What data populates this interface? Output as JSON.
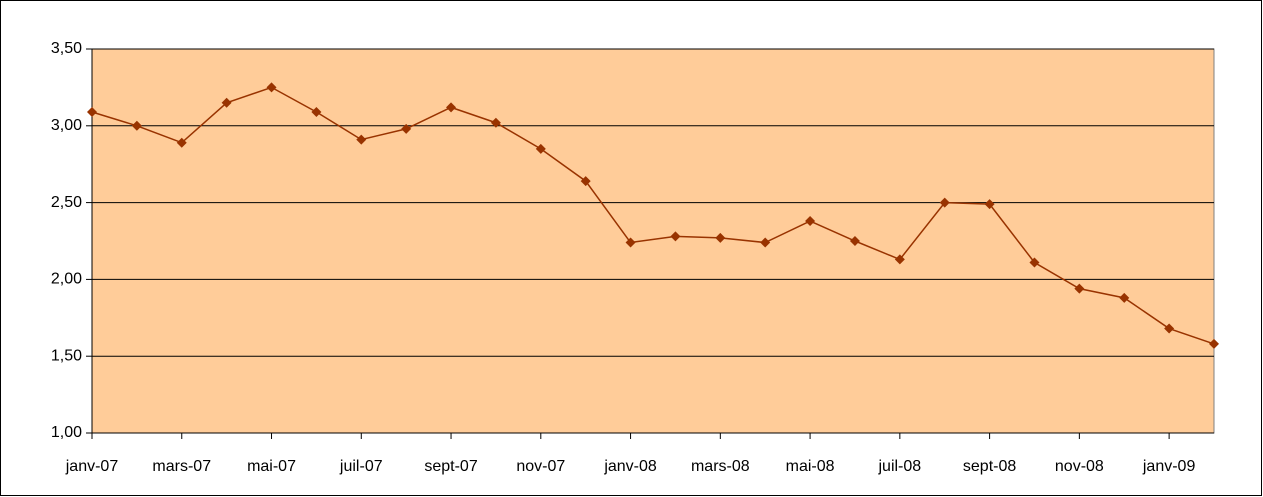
{
  "chart_data": {
    "type": "line",
    "categories": [
      "janv-07",
      null,
      "mars-07",
      null,
      "mai-07",
      null,
      "juil-07",
      null,
      "sept-07",
      null,
      "nov-07",
      null,
      "janv-08",
      null,
      "mars-08",
      null,
      "mai-08",
      null,
      "juil-08",
      null,
      "sept-08",
      null,
      "nov-08",
      null,
      "janv-09",
      null
    ],
    "series": [
      {
        "color": "#993300",
        "values": [
          3.09,
          3.0,
          2.89,
          3.15,
          3.25,
          3.09,
          2.91,
          2.98,
          3.12,
          3.02,
          2.85,
          2.64,
          2.24,
          2.28,
          2.27,
          2.24,
          2.38,
          2.25,
          2.13,
          2.5,
          2.49,
          2.11,
          1.94,
          1.88,
          1.68,
          1.58
        ]
      }
    ],
    "ylim": [
      1.0,
      3.5
    ],
    "yticks": [
      {
        "value": 1.0,
        "label": "1,00"
      },
      {
        "value": 1.5,
        "label": "1,50"
      },
      {
        "value": 2.0,
        "label": "2,00"
      },
      {
        "value": 2.5,
        "label": "2,50"
      },
      {
        "value": 3.0,
        "label": "3,00"
      },
      {
        "value": 3.5,
        "label": "3,50"
      }
    ],
    "grid": true,
    "plot_background": "#FFCC99"
  }
}
